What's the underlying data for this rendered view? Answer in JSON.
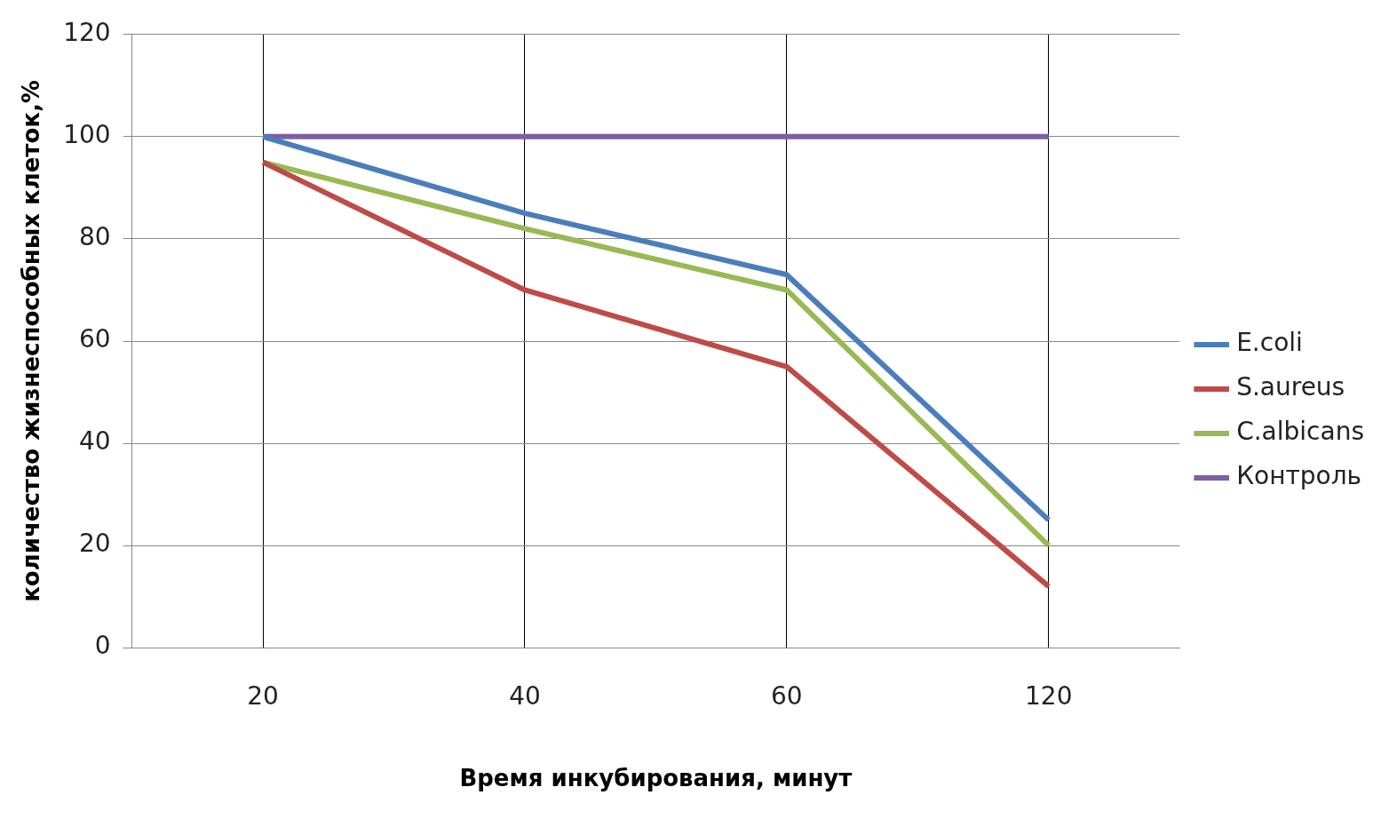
{
  "chart_data": {
    "type": "line",
    "xlabel": "Время инкубирования, минут",
    "ylabel": "количество жизнеспособных клеток,%",
    "categories": [
      "20",
      "40",
      "60",
      "120"
    ],
    "series": [
      {
        "name": "E.coli",
        "color": "#4a7ebb",
        "values": [
          100,
          85,
          73,
          25
        ]
      },
      {
        "name": "S.aureus",
        "color": "#be4b48",
        "values": [
          95,
          70,
          55,
          12
        ]
      },
      {
        "name": "C.albicans",
        "color": "#98b954",
        "values": [
          95,
          82,
          70,
          20
        ]
      },
      {
        "name": "Контроль",
        "color": "#7d60a0",
        "values": [
          100,
          100,
          100,
          100
        ]
      }
    ],
    "ylim": [
      0,
      120
    ],
    "yticks": [
      0,
      20,
      40,
      60,
      80,
      100,
      120
    ],
    "grid": true,
    "legend": "right",
    "marker": "none",
    "line_style": "solid"
  }
}
